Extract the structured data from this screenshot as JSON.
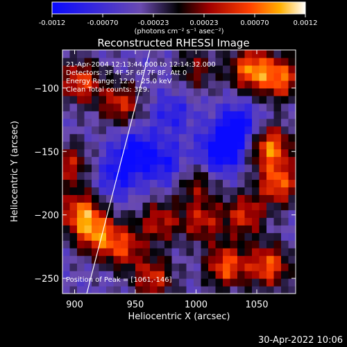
{
  "chart_data": {
    "type": "heatmap",
    "title": "Reconstructed RHESSI Image",
    "xlabel": "Heliocentric X (arcsec)",
    "ylabel": "Heliocentric Y (arcsec)",
    "xlim": [
      890,
      1082
    ],
    "ylim": [
      -262,
      -70
    ],
    "xticks": [
      900,
      950,
      1000,
      1050
    ],
    "yticks": [
      -100,
      -150,
      -200,
      -250
    ],
    "colorbar": {
      "range": [
        -0.0012,
        0.0012
      ],
      "ticks": [
        "-0.0012",
        "-0.00070",
        "-0.00023",
        "0.00023",
        "0.00070",
        "0.0012"
      ],
      "unit_label": "(photons cm⁻² s⁻¹ asec⁻²)"
    },
    "annotations": [
      "21-Apr-2004 12:13:44.000 to 12:14:32.000",
      "Detectors: 3F 4F 5F 6F 7F 8F, Att 0",
      "Energy Range: 12.0 - 25.0 keV",
      "Clean     Total counts: 329.",
      "Position of Peak = [1061,-146]"
    ],
    "limb_line": {
      "x": [
        910,
        962
      ],
      "y": [
        -262,
        -70
      ]
    },
    "hotspots": [
      {
        "x": 905,
        "y": -95,
        "v": 0.001
      },
      {
        "x": 938,
        "y": -112,
        "v": 0.0009
      },
      {
        "x": 1045,
        "y": -85,
        "v": 0.0012
      },
      {
        "x": 1070,
        "y": -92,
        "v": 0.0011
      },
      {
        "x": 1061,
        "y": -146,
        "v": 0.0012
      },
      {
        "x": 1068,
        "y": -175,
        "v": 0.0011
      },
      {
        "x": 1040,
        "y": -200,
        "v": 0.0009
      },
      {
        "x": 905,
        "y": -198,
        "v": 0.0011
      },
      {
        "x": 918,
        "y": -215,
        "v": 0.001
      },
      {
        "x": 940,
        "y": -225,
        "v": 0.0009
      },
      {
        "x": 970,
        "y": -205,
        "v": 0.0008
      },
      {
        "x": 1005,
        "y": -205,
        "v": 0.0008
      },
      {
        "x": 1025,
        "y": -240,
        "v": 0.0011
      },
      {
        "x": 1060,
        "y": -240,
        "v": 0.0011
      },
      {
        "x": 965,
        "y": -250,
        "v": 0.0009
      },
      {
        "x": 1000,
        "y": -175,
        "v": 0.0006
      },
      {
        "x": 1000,
        "y": -85,
        "v": 0.0006
      },
      {
        "x": 895,
        "y": -160,
        "v": 0.0008
      },
      {
        "x": 950,
        "y": -150,
        "v": -0.0008
      },
      {
        "x": 1035,
        "y": -130,
        "v": -0.0009
      },
      {
        "x": 1020,
        "y": -150,
        "v": -0.001
      },
      {
        "x": 935,
        "y": -170,
        "v": -0.0006
      },
      {
        "x": 980,
        "y": -120,
        "v": -0.0005
      },
      {
        "x": 975,
        "y": -160,
        "v": -0.0006
      }
    ]
  },
  "footer_date": "30-Apr-2022 10:06"
}
